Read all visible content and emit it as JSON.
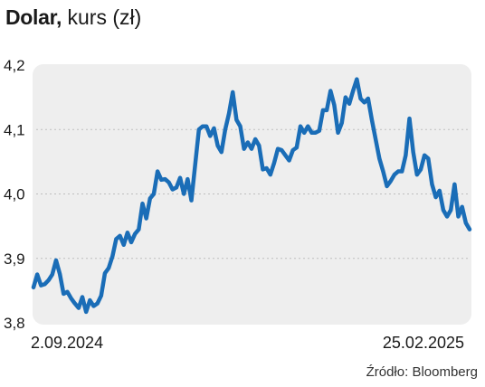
{
  "header": {
    "title_main": "Dolar,",
    "title_sub": "kurs (zł)"
  },
  "source": "Źródło: Bloomberg",
  "colors": {
    "line": "#1a6db7",
    "plot_bg": "#eeeeee",
    "grid": "#bdbdbd"
  },
  "chart_data": {
    "type": "line",
    "title": "Dolar, kurs (zł)",
    "xlabel": "",
    "ylabel": "",
    "ylim": [
      3.8,
      4.2
    ],
    "yticks": [
      {
        "value": 4.2,
        "label": "4,2"
      },
      {
        "value": 4.1,
        "label": "4,1"
      },
      {
        "value": 4.0,
        "label": "4,0"
      },
      {
        "value": 3.9,
        "label": "3,9"
      },
      {
        "value": 3.8,
        "label": "3,8"
      }
    ],
    "xticks": [
      "2.09.2024",
      "25.02.2025"
    ],
    "grid": "horizontal dotted",
    "series": [
      {
        "values": [
          3.855,
          3.875,
          3.858,
          3.86,
          3.866,
          3.875,
          3.897,
          3.876,
          3.845,
          3.848,
          3.838,
          3.83,
          3.823,
          3.84,
          3.817,
          3.835,
          3.826,
          3.83,
          3.842,
          3.877,
          3.885,
          3.903,
          3.93,
          3.935,
          3.921,
          3.94,
          3.925,
          3.938,
          3.945,
          3.985,
          3.962,
          3.993,
          4.0,
          4.035,
          4.022,
          4.023,
          4.018,
          4.007,
          4.01,
          4.025,
          4.0,
          4.023,
          3.99,
          4.045,
          4.1,
          4.105,
          4.105,
          4.09,
          4.102,
          4.075,
          4.065,
          4.1,
          4.125,
          4.158,
          4.115,
          4.105,
          4.07,
          4.08,
          4.07,
          4.085,
          4.075,
          4.038,
          4.04,
          4.03,
          4.048,
          4.07,
          4.068,
          4.06,
          4.052,
          4.068,
          4.072,
          4.105,
          4.095,
          4.105,
          4.095,
          4.095,
          4.098,
          4.13,
          4.13,
          4.16,
          4.138,
          4.095,
          4.11,
          4.15,
          4.14,
          4.16,
          4.178,
          4.148,
          4.142,
          4.148,
          4.115,
          4.085,
          4.055,
          4.035,
          4.012,
          4.02,
          4.03,
          4.035,
          4.035,
          4.06,
          4.117,
          4.065,
          4.03,
          4.038,
          4.06,
          4.055,
          4.015,
          3.995,
          4.005,
          3.975,
          3.965,
          3.975,
          4.015,
          3.965,
          3.98,
          3.955,
          3.945
        ]
      }
    ]
  }
}
